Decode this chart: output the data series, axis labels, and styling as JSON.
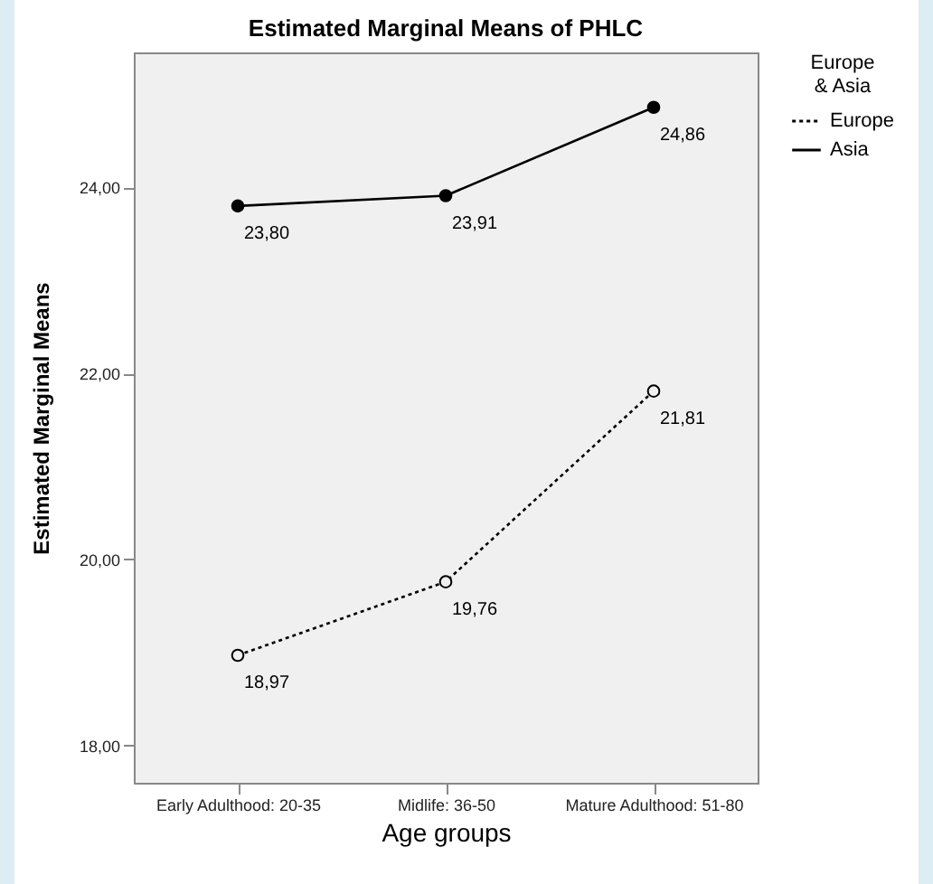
{
  "chart_data": {
    "type": "line",
    "title": "Estimated Marginal Means of PHLC",
    "xlabel": "Age groups",
    "ylabel": "Estimated Marginal Means",
    "legend_title": "Europe & Asia",
    "categories": [
      "Early Adulthood: 20-35",
      "Midlife:  36-50",
      "Mature Adulthood: 51-80"
    ],
    "series": [
      {
        "name": "Europe",
        "color": "#000000",
        "line_style": "dotted",
        "values": [
          18.97,
          19.76,
          21.81
        ],
        "value_labels": [
          "18,97",
          "19,76",
          "21,81"
        ]
      },
      {
        "name": "Asia",
        "color": "#000000",
        "line_style": "solid",
        "values": [
          23.8,
          23.91,
          24.86
        ],
        "value_labels": [
          "23,80",
          "23,91",
          "24,86"
        ]
      }
    ],
    "ylim": [
      17.6,
      25.45
    ],
    "yticks": [
      {
        "value": 18,
        "label": "18,00"
      },
      {
        "value": 20,
        "label": "20,00"
      },
      {
        "value": 22,
        "label": "22,00"
      },
      {
        "value": 24,
        "label": "24,00"
      }
    ],
    "marker": "circle",
    "legend": "right",
    "grid": false
  }
}
